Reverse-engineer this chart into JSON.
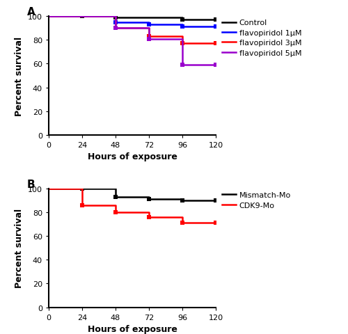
{
  "panel_A": {
    "label": "A",
    "series": [
      {
        "name": "Control",
        "color": "#000000",
        "x": [
          0,
          24,
          48,
          96,
          120
        ],
        "y": [
          100,
          100,
          99,
          97,
          97
        ]
      },
      {
        "name": "flavopiridol 1μM",
        "color": "#0000ff",
        "x": [
          0,
          48,
          72,
          96,
          120
        ],
        "y": [
          100,
          95,
          93,
          91,
          91
        ]
      },
      {
        "name": "flavopiridol 3μM",
        "color": "#ff0000",
        "x": [
          0,
          48,
          72,
          96,
          120
        ],
        "y": [
          100,
          90,
          83,
          77,
          77
        ]
      },
      {
        "name": "flavopiridol 5μM",
        "color": "#9900cc",
        "x": [
          0,
          48,
          72,
          96,
          120
        ],
        "y": [
          100,
          90,
          81,
          59,
          59
        ]
      }
    ],
    "xlabel": "Hours of exposure",
    "ylabel": "Percent survival",
    "xlim": [
      0,
      120
    ],
    "ylim": [
      0,
      100
    ],
    "xticks": [
      0,
      24,
      48,
      72,
      96,
      120
    ],
    "yticks": [
      0,
      20,
      40,
      60,
      80,
      100
    ]
  },
  "panel_B": {
    "label": "B",
    "series": [
      {
        "name": "Mismatch-Mo",
        "color": "#000000",
        "x": [
          0,
          24,
          48,
          72,
          96,
          120
        ],
        "y": [
          100,
          100,
          93,
          91,
          90,
          90
        ]
      },
      {
        "name": "CDK9-Mo",
        "color": "#ff0000",
        "x": [
          0,
          24,
          48,
          72,
          96,
          120
        ],
        "y": [
          100,
          86,
          80,
          76,
          71,
          71
        ]
      }
    ],
    "xlabel": "Hours of exposure",
    "ylabel": "Percent survival",
    "xlim": [
      0,
      120
    ],
    "ylim": [
      0,
      100
    ],
    "xticks": [
      0,
      24,
      48,
      72,
      96,
      120
    ],
    "yticks": [
      0,
      20,
      40,
      60,
      80,
      100
    ]
  },
  "background_color": "#ffffff",
  "plot_bg_color": "#ffffff",
  "marker": "s",
  "marker_size": 4,
  "linewidth": 1.8,
  "font_size": 8,
  "label_font_size": 9,
  "tick_font_size": 8
}
